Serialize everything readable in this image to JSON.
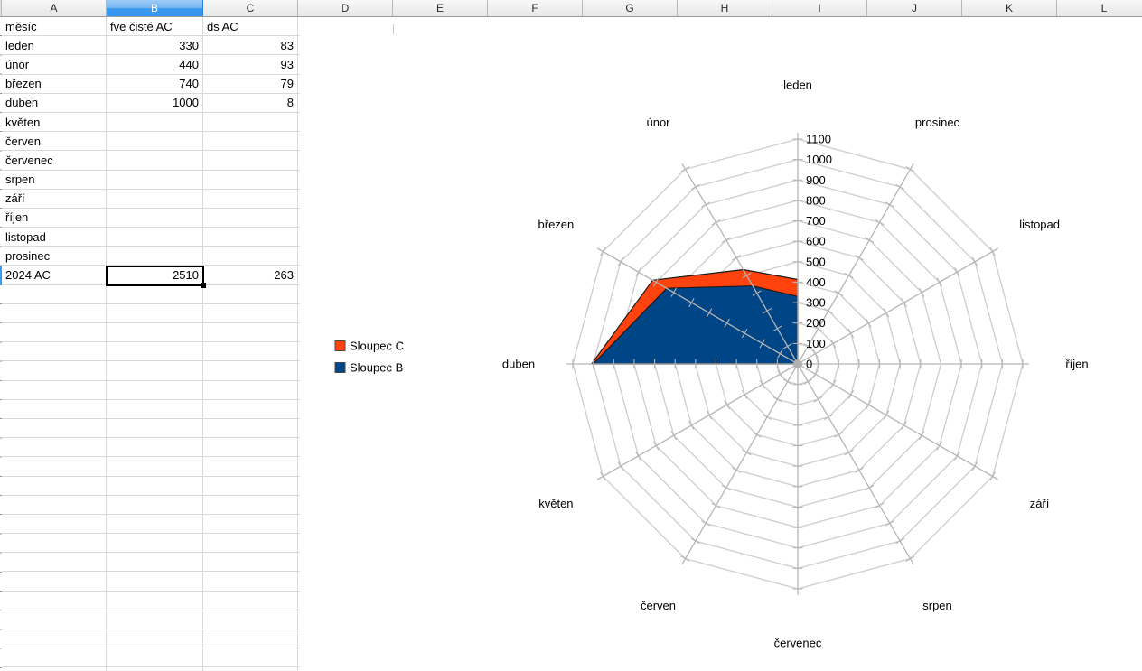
{
  "sheet": {
    "column_headers": [
      "A",
      "B",
      "C",
      "D",
      "E",
      "F",
      "G",
      "H",
      "I",
      "J",
      "K",
      "L"
    ],
    "selected_column_index": 1,
    "rows": [
      [
        "měsíc",
        "fve čisté AC",
        "ds AC"
      ],
      [
        "leden",
        "330",
        "83"
      ],
      [
        "únor",
        "440",
        "93"
      ],
      [
        "březen",
        "740",
        "79"
      ],
      [
        "duben",
        "1000",
        "8"
      ],
      [
        "květen",
        "",
        ""
      ],
      [
        "červen",
        "",
        ""
      ],
      [
        "červenec",
        "",
        ""
      ],
      [
        "srpen",
        "",
        ""
      ],
      [
        "září",
        "",
        ""
      ],
      [
        "říjen",
        "",
        ""
      ],
      [
        "listopad",
        "",
        ""
      ],
      [
        "prosinec",
        "",
        ""
      ],
      [
        "2024 AC",
        "2510",
        "263"
      ]
    ],
    "selected_cell": {
      "row_index": 13,
      "col_index": 1,
      "value": "2510"
    }
  },
  "chart_data": {
    "type": "radar",
    "stacked": true,
    "categories": [
      "leden",
      "únor",
      "březen",
      "duben",
      "květen",
      "červen",
      "červenec",
      "srpen",
      "září",
      "říjen",
      "listopad",
      "prosinec"
    ],
    "series": [
      {
        "name": "Sloupec B",
        "color": "#004586",
        "values": [
          330,
          440,
          740,
          1000,
          null,
          null,
          null,
          null,
          null,
          null,
          null,
          null
        ]
      },
      {
        "name": "Sloupec C",
        "color": "#ff420e",
        "values": [
          83,
          93,
          79,
          8,
          null,
          null,
          null,
          null,
          null,
          null,
          null,
          null
        ]
      }
    ],
    "axis": {
      "min": 0,
      "max": 1100,
      "step": 100,
      "tick_labels": [
        "0",
        "100",
        "200",
        "300",
        "400",
        "500",
        "600",
        "700",
        "800",
        "900",
        "1000",
        "1100"
      ]
    },
    "legend": {
      "position": "left",
      "entries": [
        {
          "label": "Sloupec C",
          "color": "#ff420e"
        },
        {
          "label": "Sloupec B",
          "color": "#004586"
        }
      ]
    },
    "grid": true
  },
  "colors": {
    "grid_line": "#d9d9d9",
    "header_border": "#b6b6b6",
    "selected_header_blue": "#3d9af0",
    "chart_ring": "#d0d0d0",
    "chart_spoke": "#b5b5b5",
    "series_outline": "#1a1a1a",
    "series_blue": "#004586",
    "series_red": "#ff420e"
  }
}
